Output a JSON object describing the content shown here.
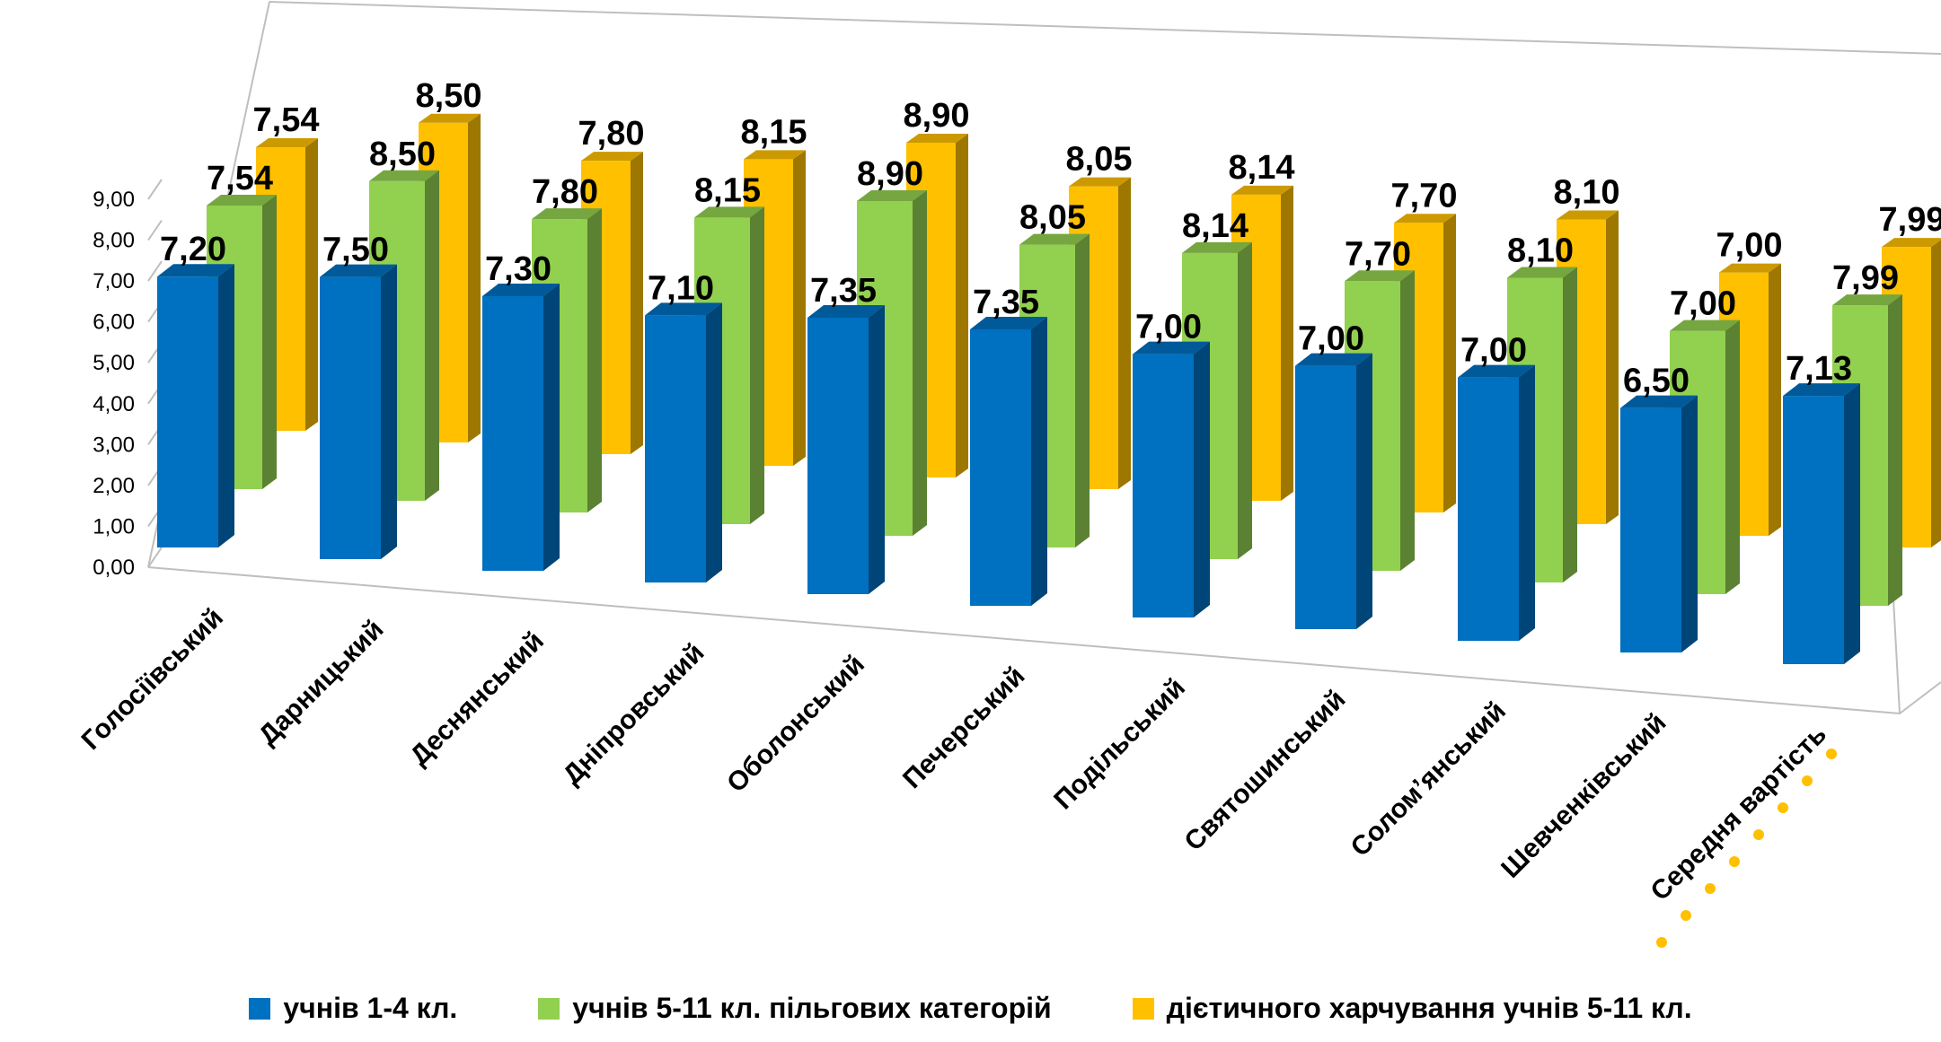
{
  "chart_data": {
    "type": "bar",
    "variant": "3d-column",
    "categories": [
      "Голосіївський",
      "Дарницький",
      "Деснянський",
      "Дніпровський",
      "Оболонський",
      "Печерський",
      "Подільський",
      "Святошинський",
      "Солом’янський",
      "Шевченківський",
      "Середня вартість"
    ],
    "series": [
      {
        "name": "учнів 1-4 кл.",
        "color": "#0070C0",
        "values": [
          7.2,
          7.5,
          7.3,
          7.1,
          7.35,
          7.35,
          7.0,
          7.0,
          7.0,
          6.5,
          7.13
        ],
        "labels": [
          "7,20",
          "7,50",
          "7,30",
          "7,10",
          "7,35",
          "7,35",
          "7,00",
          "7,00",
          "7,00",
          "6,50",
          "7,13"
        ]
      },
      {
        "name": "учнів 5-11 кл. пільгових категорій",
        "color": "#92D050",
        "values": [
          7.54,
          8.5,
          7.8,
          8.15,
          8.9,
          8.05,
          8.14,
          7.7,
          8.1,
          7.0,
          7.99
        ],
        "labels": [
          "7,54",
          "8,50",
          "7,80",
          "8,15",
          "8,90",
          "8,05",
          "8,14",
          "7,70",
          "8,10",
          "7,00",
          "7,99"
        ]
      },
      {
        "name": "дієтичного харчування  учнів 5-11 кл.",
        "color": "#FFC000",
        "values": [
          7.54,
          8.5,
          7.8,
          8.15,
          8.9,
          8.05,
          8.14,
          7.7,
          8.1,
          7.0,
          7.99
        ],
        "labels": [
          "7,54",
          "8,50",
          "7,80",
          "8,15",
          "8,90",
          "8,05",
          "8,14",
          "7,70",
          "8,10",
          "7,00",
          "7,99"
        ]
      }
    ],
    "y_ticks": [
      "0,00",
      "1,00",
      "2,00",
      "3,00",
      "4,00",
      "5,00",
      "6,00",
      "7,00",
      "8,00",
      "9,00"
    ],
    "ylim": [
      0,
      9
    ],
    "grid": false,
    "legend_position": "bottom",
    "decoration_color": "#FFC000"
  }
}
